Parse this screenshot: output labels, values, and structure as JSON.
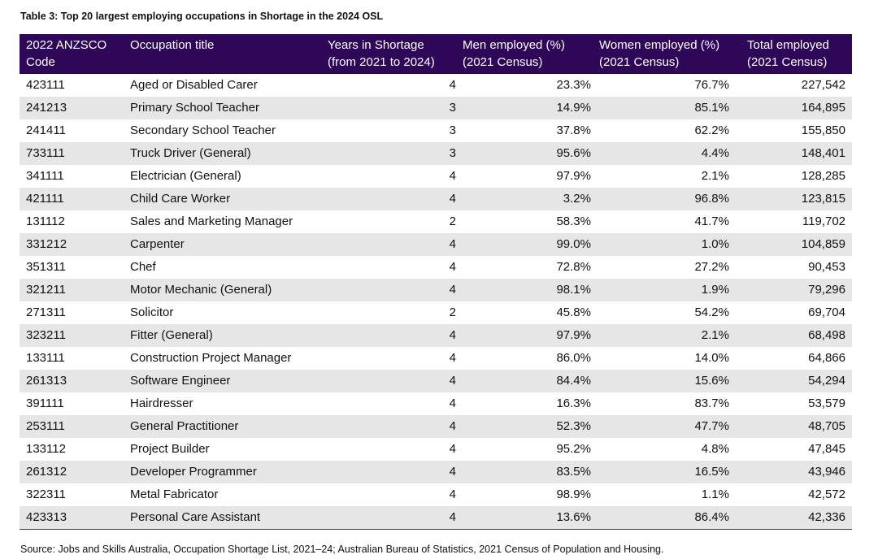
{
  "title": "Table 3: Top 20 largest employing occupations in Shortage in the 2024 OSL",
  "headers": [
    [
      "2022 ANZSCO",
      "Code"
    ],
    [
      "Occupation title",
      ""
    ],
    [
      "Years in Shortage",
      "(from 2021 to 2024)"
    ],
    [
      "Men employed (%)",
      "(2021 Census)"
    ],
    [
      "Women employed (%)",
      "(2021 Census)"
    ],
    [
      "Total employed",
      "(2021 Census)"
    ]
  ],
  "rows": [
    [
      "423111",
      "Aged or Disabled Carer",
      "4",
      "23.3%",
      "76.7%",
      "227,542"
    ],
    [
      "241213",
      "Primary School Teacher",
      "3",
      "14.9%",
      "85.1%",
      "164,895"
    ],
    [
      "241411",
      "Secondary School Teacher",
      "3",
      "37.8%",
      "62.2%",
      "155,850"
    ],
    [
      "733111",
      "Truck Driver (General)",
      "3",
      "95.6%",
      "4.4%",
      "148,401"
    ],
    [
      "341111",
      "Electrician (General)",
      "4",
      "97.9%",
      "2.1%",
      "128,285"
    ],
    [
      "421111",
      "Child Care Worker",
      "4",
      "3.2%",
      "96.8%",
      "123,815"
    ],
    [
      "131112",
      "Sales and Marketing Manager",
      "2",
      "58.3%",
      "41.7%",
      "119,702"
    ],
    [
      "331212",
      "Carpenter",
      "4",
      "99.0%",
      "1.0%",
      "104,859"
    ],
    [
      "351311",
      "Chef",
      "4",
      "72.8%",
      "27.2%",
      "90,453"
    ],
    [
      "321211",
      "Motor Mechanic (General)",
      "4",
      "98.1%",
      "1.9%",
      "79,296"
    ],
    [
      "271311",
      "Solicitor",
      "2",
      "45.8%",
      "54.2%",
      "69,704"
    ],
    [
      "323211",
      "Fitter (General)",
      "4",
      "97.9%",
      "2.1%",
      "68,498"
    ],
    [
      "133111",
      "Construction Project Manager",
      "4",
      "86.0%",
      "14.0%",
      "64,866"
    ],
    [
      "261313",
      "Software Engineer",
      "4",
      "84.4%",
      "15.6%",
      "54,294"
    ],
    [
      "391111",
      "Hairdresser",
      "4",
      "16.3%",
      "83.7%",
      "53,579"
    ],
    [
      "253111",
      "General Practitioner",
      "4",
      "52.3%",
      "47.7%",
      "48,705"
    ],
    [
      "133112",
      "Project Builder",
      "4",
      "95.2%",
      "4.8%",
      "47,845"
    ],
    [
      "261312",
      "Developer Programmer",
      "4",
      "83.5%",
      "16.5%",
      "43,946"
    ],
    [
      "322311",
      "Metal Fabricator",
      "4",
      "98.9%",
      "1.1%",
      "42,572"
    ],
    [
      "423313",
      "Personal Care Assistant",
      "4",
      "13.6%",
      "86.4%",
      "42,336"
    ]
  ],
  "source": "Source: Jobs and Skills Australia, Occupation Shortage List, 2021–24; Australian Bureau of Statistics, 2021 Census of Population and Housing.",
  "colors": {
    "header_bg": "#2e0758",
    "stripe": "#e6e6e6",
    "rule": "#5b2a9e"
  }
}
